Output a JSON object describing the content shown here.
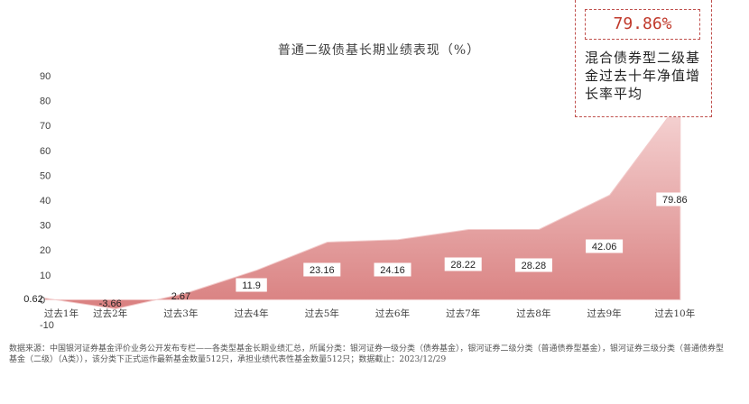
{
  "chart_data": {
    "type": "area",
    "title": "普通二级债基长期业绩表现（%）",
    "categories": [
      "过去1年",
      "过去2年",
      "过去3年",
      "过去4年",
      "过去5年",
      "过去6年",
      "过去7年",
      "过去8年",
      "过去9年",
      "过去10年"
    ],
    "values": [
      0.62,
      -3.66,
      2.67,
      11.9,
      23.16,
      24.16,
      28.22,
      28.28,
      42.06,
      79.86
    ],
    "data_labels": [
      "0.62",
      "-3.66",
      "2.67",
      "11.9",
      "23.16",
      "24.16",
      "28.22",
      "28.28",
      "42.06",
      "79.86"
    ],
    "yticks": [
      "90",
      "80",
      "70",
      "60",
      "50",
      "40",
      "30",
      "20",
      "10",
      "0",
      "-10"
    ],
    "ylim": [
      -10,
      90
    ],
    "grid": false,
    "colors": {
      "area_top": "#f6d6d6",
      "area_bottom": "#d98080",
      "edge": "#f2caca"
    }
  },
  "callout": {
    "value": "79.86%",
    "text": "混合债券型二级基金过去十年净值增长率平均",
    "border_color": "#c0504d",
    "value_color": "#c0392b"
  },
  "source": "数据来源：中国银河证券基金评价业务公开发布专栏——各类型基金长期业绩汇总，所属分类：银河证券一级分类（债券基金），银河证券二级分类（普通债券型基金），银河证券三级分类（普通债券型基金（二级）（A类）），该分类下正式运作最新基金数量512只，承担业绩代表性基金数量512只；数据截止：2023/12/29"
}
